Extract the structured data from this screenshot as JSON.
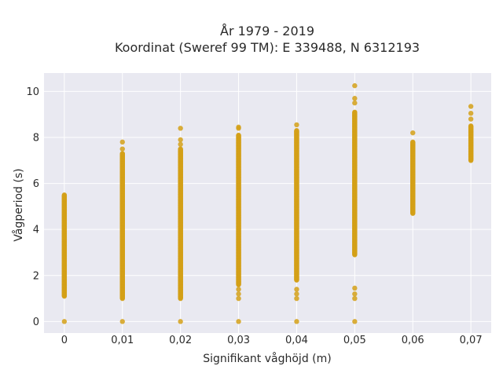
{
  "chart_data": {
    "type": "scatter",
    "title_lines": [
      "År 1979 - 2019",
      "Koordinat (Sweref 99 TM): E 339488, N 6312193"
    ],
    "xlabel": "Signifikant våghöjd (m)",
    "ylabel": "Vågperiod (s)",
    "xlim": [
      -0.0035,
      0.0735
    ],
    "ylim": [
      -0.5,
      10.8
    ],
    "x_ticks": [
      0,
      0.01,
      0.02,
      0.03,
      0.04,
      0.05,
      0.06,
      0.07
    ],
    "x_tick_labels": [
      "0",
      "0,01",
      "0,02",
      "0,03",
      "0,04",
      "0,05",
      "0,06",
      "0,07"
    ],
    "y_ticks": [
      0,
      2,
      4,
      6,
      8,
      10
    ],
    "y_tick_labels": [
      "0",
      "2",
      "4",
      "6",
      "8",
      "10"
    ],
    "grid": true,
    "marker_color": "#D4A017",
    "background_color": "#E9E9F1",
    "columns": [
      {
        "x": 0.0,
        "y_min": 1.1,
        "y_max": 5.5,
        "outliers": [
          0
        ]
      },
      {
        "x": 0.01,
        "y_min": 1.0,
        "y_max": 7.3,
        "outliers": [
          0,
          7.5,
          7.8
        ]
      },
      {
        "x": 0.02,
        "y_min": 1.0,
        "y_max": 7.5,
        "outliers": [
          0,
          7.7,
          7.9,
          8.4
        ]
      },
      {
        "x": 0.03,
        "y_min": 1.6,
        "y_max": 8.1,
        "outliers": [
          0,
          1.0,
          1.2,
          1.4,
          8.4,
          8.45
        ]
      },
      {
        "x": 0.04,
        "y_min": 1.8,
        "y_max": 8.3,
        "outliers": [
          0,
          1.0,
          1.2,
          1.4,
          8.55
        ]
      },
      {
        "x": 0.05,
        "y_min": 2.9,
        "y_max": 9.1,
        "outliers": [
          0,
          1.0,
          1.2,
          1.45,
          9.5,
          9.7,
          10.25
        ]
      },
      {
        "x": 0.06,
        "y_min": 4.7,
        "y_max": 7.8,
        "outliers": [
          8.2
        ]
      },
      {
        "x": 0.07,
        "y_min": 7.0,
        "y_max": 8.5,
        "outliers": [
          8.8,
          9.05,
          9.35
        ]
      }
    ]
  }
}
